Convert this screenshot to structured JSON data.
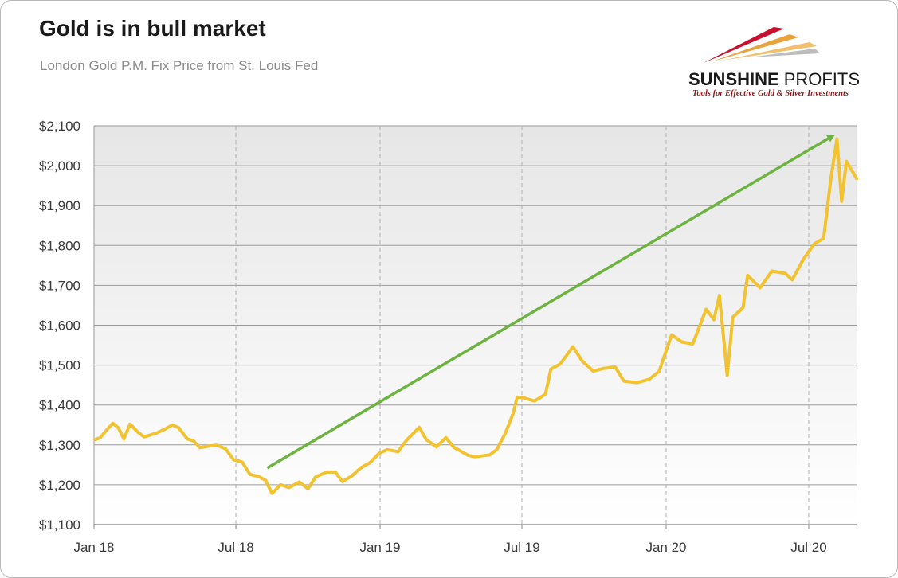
{
  "title": "Gold is in bull market",
  "subtitle": "London Gold P.M. Fix Price from St. Louis Fed",
  "logo": {
    "name_bold": "SUNSHINE",
    "name_regular": "PROFITS",
    "tagline": "Tools for Effective Gold & Silver Investments",
    "colors": [
      "#c8102e",
      "#e8a33d",
      "#f0c070",
      "#bdbdbd"
    ]
  },
  "colors": {
    "line": "#f2c230",
    "arrow": "#6db33f",
    "grid_solid": "#9a9a9a",
    "grid_dashed": "#b0b0b0"
  },
  "chart_data": {
    "type": "line",
    "title": "Gold is in bull market",
    "subtitle": "London Gold P.M. Fix Price from St. Louis Fed",
    "xlabel": "",
    "ylabel": "",
    "ylim": [
      1100,
      2100
    ],
    "xlim": [
      "2018-01-01",
      "2020-08-31"
    ],
    "y_ticks": [
      "$1,100",
      "$1,200",
      "$1,300",
      "$1,400",
      "$1,500",
      "$1,600",
      "$1,700",
      "$1,800",
      "$1,900",
      "$2,000",
      "$2,100"
    ],
    "y_tick_values": [
      1100,
      1200,
      1300,
      1400,
      1500,
      1600,
      1700,
      1800,
      1900,
      2000,
      2100
    ],
    "x_ticks": [
      "Jan 18",
      "Jul 18",
      "Jan 19",
      "Jul 19",
      "Jan 20",
      "Jul 20"
    ],
    "x_tick_dates": [
      "2018-01-01",
      "2018-07-01",
      "2019-01-01",
      "2019-07-01",
      "2020-01-01",
      "2020-07-01"
    ],
    "grid": true,
    "legend": "none",
    "series": [
      {
        "color": "#f2c230",
        "points": [
          [
            "2018-01-02",
            1313
          ],
          [
            "2018-01-09",
            1318
          ],
          [
            "2018-01-16",
            1335
          ],
          [
            "2018-01-25",
            1354
          ],
          [
            "2018-02-01",
            1343
          ],
          [
            "2018-02-08",
            1315
          ],
          [
            "2018-02-16",
            1352
          ],
          [
            "2018-02-26",
            1332
          ],
          [
            "2018-03-06",
            1320
          ],
          [
            "2018-03-14",
            1325
          ],
          [
            "2018-03-22",
            1330
          ],
          [
            "2018-04-02",
            1340
          ],
          [
            "2018-04-11",
            1350
          ],
          [
            "2018-04-19",
            1343
          ],
          [
            "2018-04-30",
            1315
          ],
          [
            "2018-05-08",
            1310
          ],
          [
            "2018-05-16",
            1293
          ],
          [
            "2018-05-28",
            1297
          ],
          [
            "2018-06-07",
            1299
          ],
          [
            "2018-06-18",
            1290
          ],
          [
            "2018-06-28",
            1263
          ],
          [
            "2018-07-09",
            1257
          ],
          [
            "2018-07-19",
            1226
          ],
          [
            "2018-07-30",
            1221
          ],
          [
            "2018-08-08",
            1211
          ],
          [
            "2018-08-16",
            1178
          ],
          [
            "2018-08-27",
            1200
          ],
          [
            "2018-09-07",
            1193
          ],
          [
            "2018-09-20",
            1207
          ],
          [
            "2018-10-01",
            1190
          ],
          [
            "2018-10-11",
            1220
          ],
          [
            "2018-10-25",
            1232
          ],
          [
            "2018-11-05",
            1232
          ],
          [
            "2018-11-14",
            1208
          ],
          [
            "2018-11-26",
            1222
          ],
          [
            "2018-12-07",
            1242
          ],
          [
            "2018-12-19",
            1255
          ],
          [
            "2018-12-31",
            1279
          ],
          [
            "2019-01-10",
            1288
          ],
          [
            "2019-01-24",
            1283
          ],
          [
            "2019-02-04",
            1312
          ],
          [
            "2019-02-20",
            1344
          ],
          [
            "2019-03-01",
            1313
          ],
          [
            "2019-03-14",
            1295
          ],
          [
            "2019-03-26",
            1318
          ],
          [
            "2019-04-05",
            1294
          ],
          [
            "2019-04-23",
            1274
          ],
          [
            "2019-05-02",
            1270
          ],
          [
            "2019-05-21",
            1275
          ],
          [
            "2019-05-30",
            1288
          ],
          [
            "2019-06-10",
            1330
          ],
          [
            "2019-06-20",
            1380
          ],
          [
            "2019-06-25",
            1420
          ],
          [
            "2019-07-03",
            1418
          ],
          [
            "2019-07-17",
            1410
          ],
          [
            "2019-07-31",
            1427
          ],
          [
            "2019-08-07",
            1490
          ],
          [
            "2019-08-19",
            1503
          ],
          [
            "2019-09-04",
            1546
          ],
          [
            "2019-09-16",
            1510
          ],
          [
            "2019-09-30",
            1485
          ],
          [
            "2019-10-14",
            1492
          ],
          [
            "2019-10-28",
            1495
          ],
          [
            "2019-11-08",
            1460
          ],
          [
            "2019-11-25",
            1456
          ],
          [
            "2019-12-10",
            1464
          ],
          [
            "2019-12-23",
            1484
          ],
          [
            "2020-01-08",
            1576
          ],
          [
            "2020-01-21",
            1558
          ],
          [
            "2020-02-04",
            1553
          ],
          [
            "2020-02-21",
            1640
          ],
          [
            "2020-03-02",
            1614
          ],
          [
            "2020-03-09",
            1675
          ],
          [
            "2020-03-19",
            1474
          ],
          [
            "2020-03-26",
            1620
          ],
          [
            "2020-04-08",
            1644
          ],
          [
            "2020-04-14",
            1725
          ],
          [
            "2020-04-30",
            1694
          ],
          [
            "2020-05-15",
            1736
          ],
          [
            "2020-06-01",
            1730
          ],
          [
            "2020-06-10",
            1714
          ],
          [
            "2020-06-24",
            1765
          ],
          [
            "2020-07-08",
            1804
          ],
          [
            "2020-07-20",
            1818
          ],
          [
            "2020-07-29",
            1964
          ],
          [
            "2020-08-06",
            2067
          ],
          [
            "2020-08-12",
            1911
          ],
          [
            "2020-08-18",
            2011
          ],
          [
            "2020-08-31",
            1968
          ]
        ]
      }
    ],
    "annotations": [
      {
        "type": "arrow",
        "from": [
          "2018-08-10",
          1242
        ],
        "to": [
          "2020-08-01",
          2075
        ],
        "color": "#6db33f"
      }
    ]
  }
}
